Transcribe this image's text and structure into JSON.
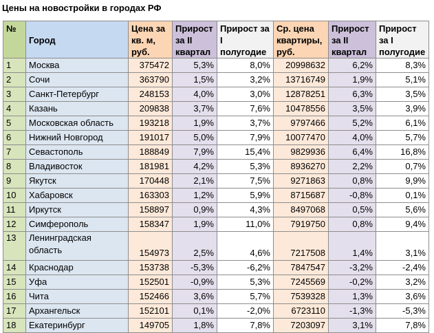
{
  "title": "Цены на новостройки в городах РФ",
  "headers": {
    "no": "№",
    "city": "Город",
    "price": "Цена за кв. м, руб.",
    "growth_q2": "Прирост за II квартал",
    "growth_h1": "Прирост за I полугодие",
    "avg_price": "Ср. цена квартиры, руб.",
    "avg_growth_q2": "Прирост за II квартал",
    "avg_growth_h1": "Прирост за I полугодие"
  },
  "rows": [
    {
      "no": "1",
      "city": "Москва",
      "price": "375472",
      "g1": "5,3%",
      "g2": "8,0%",
      "avg": "20998632",
      "g3": "6,2%",
      "g4": "8,3%"
    },
    {
      "no": "2",
      "city": "Сочи",
      "price": "363790",
      "g1": "1,5%",
      "g2": "3,2%",
      "avg": "13716749",
      "g3": "1,9%",
      "g4": "5,1%"
    },
    {
      "no": "3",
      "city": "Санкт-Петербург",
      "price": "248153",
      "g1": "4,0%",
      "g2": "3,0%",
      "avg": "12878251",
      "g3": "6,3%",
      "g4": "3,5%"
    },
    {
      "no": "4",
      "city": "Казань",
      "price": "209838",
      "g1": "3,7%",
      "g2": "7,6%",
      "avg": "10478556",
      "g3": "3,5%",
      "g4": "3,9%"
    },
    {
      "no": "5",
      "city": "Московская область",
      "price": "193218",
      "g1": "1,9%",
      "g2": "3,7%",
      "avg": "9797466",
      "g3": "5,2%",
      "g4": "6,1%"
    },
    {
      "no": "6",
      "city": "Нижний Новгород",
      "price": "191017",
      "g1": "5,0%",
      "g2": "7,9%",
      "avg": "10077470",
      "g3": "4,0%",
      "g4": "5,7%"
    },
    {
      "no": "7",
      "city": "Севастополь",
      "price": "188849",
      "g1": "7,9%",
      "g2": "15,4%",
      "avg": "9829936",
      "g3": "6,4%",
      "g4": "16,8%"
    },
    {
      "no": "8",
      "city": "Владивосток",
      "price": "181981",
      "g1": "4,2%",
      "g2": "5,3%",
      "avg": "8936270",
      "g3": "2,2%",
      "g4": "0,7%"
    },
    {
      "no": "9",
      "city": "Якутск",
      "price": "170448",
      "g1": "2,1%",
      "g2": "7,5%",
      "avg": "9271863",
      "g3": "0,8%",
      "g4": "9,9%"
    },
    {
      "no": "10",
      "city": "Хабаровск",
      "price": "163303",
      "g1": "1,2%",
      "g2": "5,9%",
      "avg": "8715687",
      "g3": "-0,8%",
      "g4": "0,1%"
    },
    {
      "no": "11",
      "city": "Иркутск",
      "price": "158897",
      "g1": "0,9%",
      "g2": "4,3%",
      "avg": "8497068",
      "g3": "0,5%",
      "g4": "5,6%"
    },
    {
      "no": "12",
      "city": "Симферополь",
      "price": "158347",
      "g1": "1,9%",
      "g2": "11,0%",
      "avg": "7919750",
      "g3": "0,8%",
      "g4": "9,4%"
    },
    {
      "no": "13",
      "city": "Ленинградская область",
      "price": "154973",
      "g1": "2,5%",
      "g2": "4,6%",
      "avg": "7217508",
      "g3": "1,4%",
      "g4": "3,1%",
      "tall": true
    },
    {
      "no": "14",
      "city": "Краснодар",
      "price": "153738",
      "g1": "-5,3%",
      "g2": "-6,2%",
      "avg": "7847547",
      "g3": "-3,2%",
      "g4": "-2,4%"
    },
    {
      "no": "15",
      "city": "Уфа",
      "price": "152501",
      "g1": "-0,9%",
      "g2": "5,3%",
      "avg": "7245569",
      "g3": "-0,2%",
      "g4": "3,2%"
    },
    {
      "no": "16",
      "city": "Чита",
      "price": "152466",
      "g1": "3,6%",
      "g2": "5,7%",
      "avg": "7539328",
      "g3": "1,3%",
      "g4": "3,6%"
    },
    {
      "no": "17",
      "city": "Архангельск",
      "price": "152101",
      "g1": "0,1%",
      "g2": "-2,0%",
      "avg": "6723110",
      "g3": "-1,3%",
      "g4": "-5,3%"
    },
    {
      "no": "18",
      "city": "Екатеринбург",
      "price": "149705",
      "g1": "1,8%",
      "g2": "7,8%",
      "avg": "7203097",
      "g3": "3,1%",
      "g4": "7,8%"
    }
  ]
}
